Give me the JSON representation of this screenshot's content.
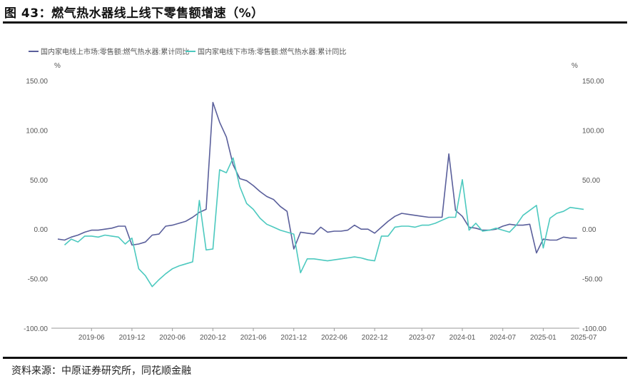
{
  "header": {
    "title": "图 43：燃气热水器线上线下零售额增速（%）"
  },
  "footer": {
    "source": "资料来源：中原证券研究所，同花顺金融"
  },
  "colors": {
    "online": "#5a5f9b",
    "offline": "#4cc9bf",
    "axis": "#888888",
    "text": "#555555"
  },
  "chart_data": {
    "type": "line",
    "yunit_left": "%",
    "yunit_right": "%",
    "ylim": [
      -100,
      150
    ],
    "yticks": [
      "150.00",
      "100.00",
      "50.00",
      "0.00",
      "-50.00",
      "-100.00"
    ],
    "ytick_values": [
      150,
      100,
      50,
      0,
      -50,
      -100
    ],
    "xticks": [
      "2019-06",
      "2019-12",
      "2020-06",
      "2020-12",
      "2021-06",
      "2021-12",
      "2022-06",
      "2022-12",
      "2023-07",
      "2024-01",
      "2024-07",
      "2025-01",
      "2025-07"
    ],
    "xtick_months": [
      5,
      11,
      17,
      23,
      29,
      35,
      41,
      47,
      54,
      60,
      66,
      72,
      78
    ],
    "legend_position": "top-left",
    "grid": false,
    "series": [
      {
        "name": "国内家电线上市场:零售额:燃气热水器:累计同比",
        "color": "#5a5f9b",
        "start_month": 0,
        "values": [
          -10,
          -11,
          -8,
          -6,
          -3,
          -1,
          -1,
          0,
          1,
          3,
          3,
          -16,
          -15,
          -13,
          -6,
          -5,
          3,
          4,
          6,
          8,
          12,
          17,
          20,
          128,
          108,
          93,
          65,
          51,
          49,
          44,
          38,
          33,
          30,
          23,
          18,
          -20,
          -3,
          -4,
          -5,
          2,
          -3,
          -2,
          -2,
          -1,
          4,
          0,
          0,
          -4,
          2,
          8,
          13,
          16,
          15,
          14,
          13,
          12,
          12,
          12,
          76,
          19,
          13,
          2,
          1,
          -1,
          -1,
          0,
          3,
          5,
          4,
          4,
          5,
          -24,
          -10,
          -11,
          -11,
          -8,
          -9,
          -9
        ]
      },
      {
        "name": "国内家电线下市场:零售额:燃气热水器:累计同比",
        "color": "#4cc9bf",
        "start_month": 1,
        "values": [
          -16,
          -10,
          -13,
          -7,
          -7,
          -8,
          -6,
          -7,
          -8,
          -15,
          -9,
          -40,
          -47,
          -58,
          -51,
          -45,
          -40,
          -37,
          -35,
          -33,
          29,
          -21,
          -20,
          60,
          57,
          72,
          43,
          26,
          20,
          11,
          5,
          2,
          -1,
          -3,
          -5,
          -44,
          -30,
          -30,
          -31,
          -32,
          -31,
          -30,
          -29,
          -28,
          -29,
          -31,
          -32,
          -7,
          -7,
          2,
          3,
          3,
          2,
          4,
          4,
          6,
          9,
          12,
          12,
          50,
          -1,
          6,
          -2,
          -1,
          1,
          -1,
          -3,
          4,
          14,
          19,
          24,
          -19,
          11,
          16,
          18,
          22,
          21,
          20
        ]
      }
    ]
  }
}
